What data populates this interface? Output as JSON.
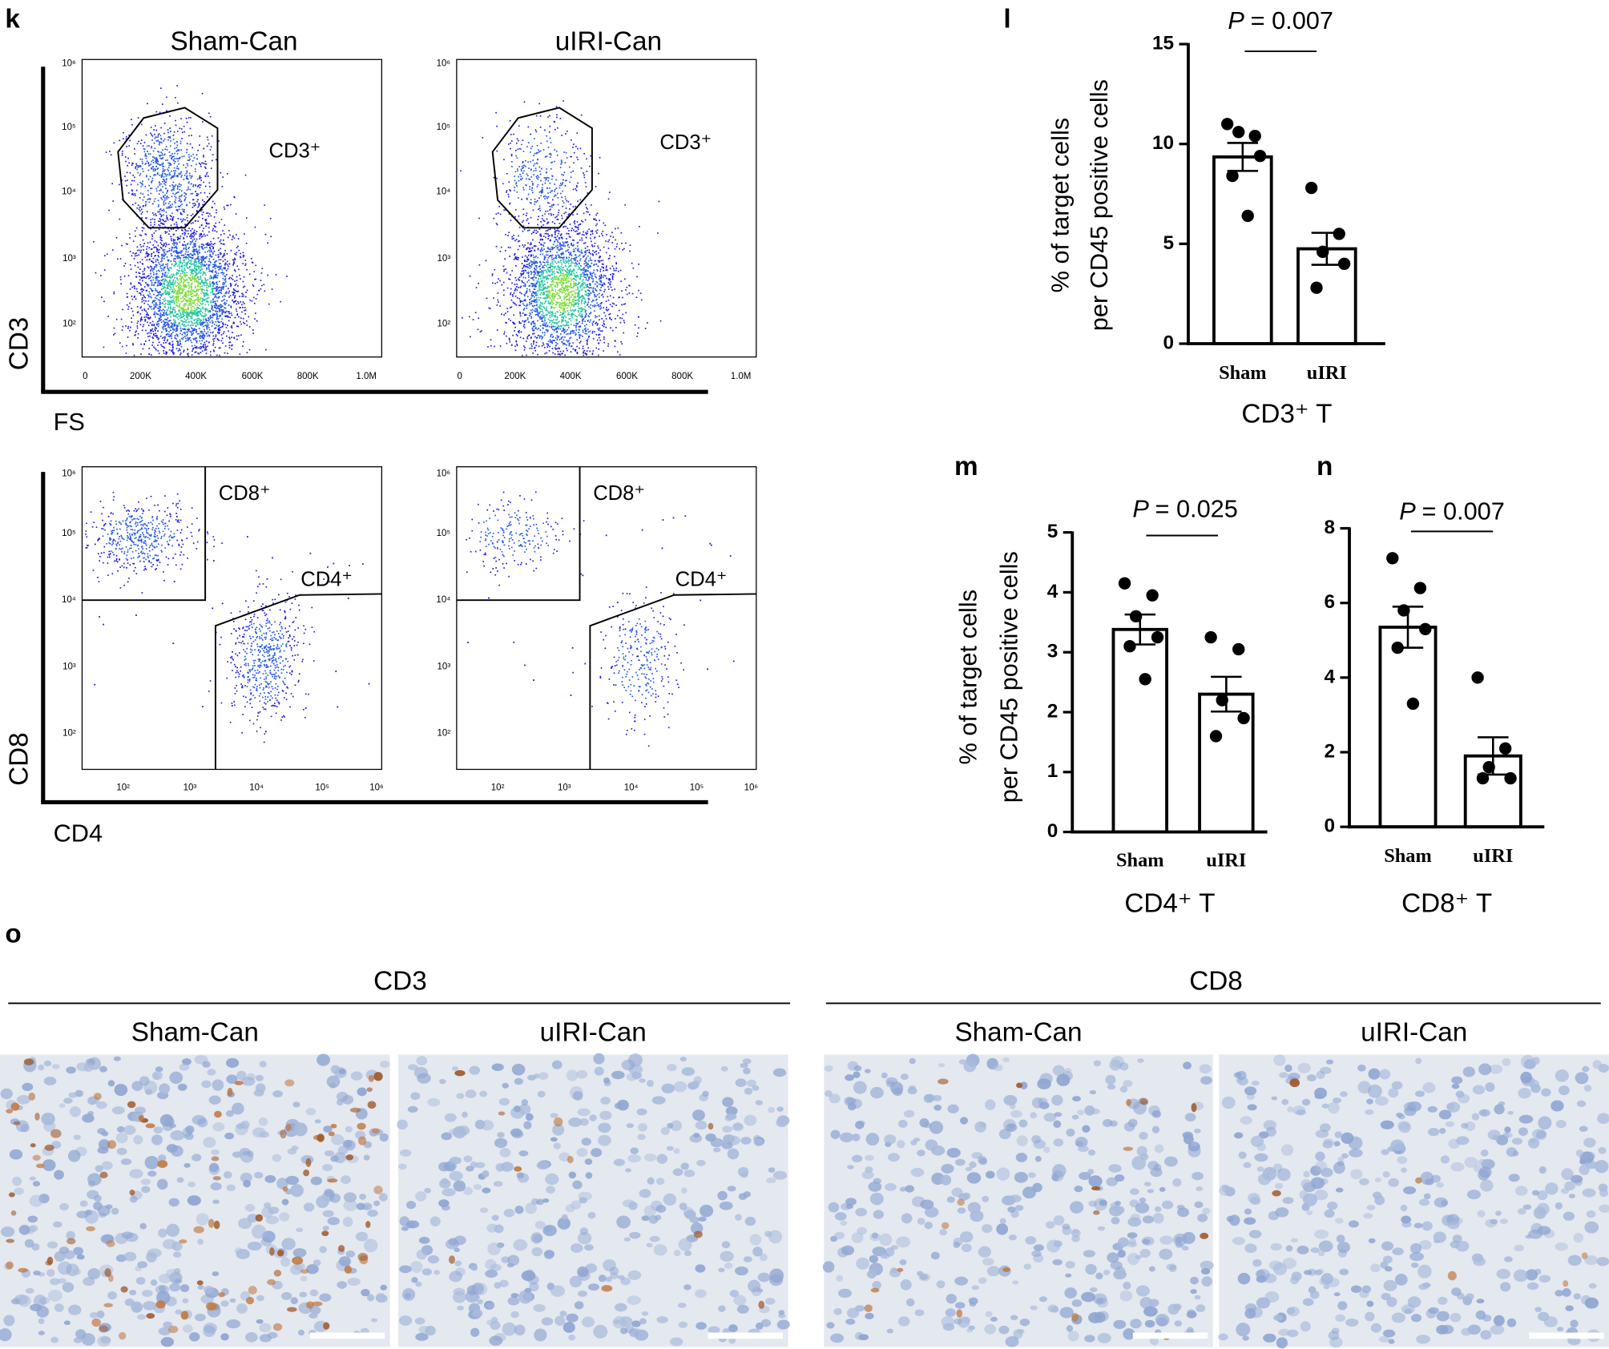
{
  "flow": {
    "panel_label": "k",
    "columns": [
      "Sham-Can",
      "uIRI-Can"
    ],
    "cd3_plot": {
      "y_label": "CD3",
      "x_label": "FS",
      "x_ticks": [
        "0",
        "200K",
        "400K",
        "600K",
        "800K",
        "1.0M"
      ],
      "y_ticks": [
        "10²",
        "10³",
        "10⁴",
        "10⁵",
        "10⁶"
      ],
      "gates": [
        "CD3⁺"
      ]
    },
    "cd4_cd8_plot": {
      "y_label": "CD8",
      "x_label": "CD4",
      "x_ticks": [
        "10²",
        "10³",
        "10⁴",
        "10⁵",
        "10⁶"
      ],
      "y_ticks": [
        "10²",
        "10³",
        "10⁴",
        "10⁵",
        "10⁶"
      ],
      "gates": [
        "CD8⁺",
        "CD4⁺"
      ]
    }
  },
  "chart_data": [
    {
      "type": "bar",
      "panel_label": "l",
      "p_value": {
        "symbol": "P",
        "text": "= 0.007"
      },
      "ylabel": [
        "% of target cells",
        "per  CD45 positive cells"
      ],
      "xlabel": "CD3⁺ T",
      "categories": [
        "Sham",
        "uIRI"
      ],
      "values": [
        9.35,
        4.75
      ],
      "errors": [
        0.7,
        0.8
      ],
      "points": [
        [
          11.0,
          10.4,
          10.6,
          9.4,
          8.4,
          6.4
        ],
        [
          7.8,
          5.5,
          4.6,
          4.0,
          2.8
        ]
      ],
      "color": "#ffffff",
      "ylim": [
        0,
        15
      ],
      "yticks": [
        0,
        5,
        10,
        15
      ]
    },
    {
      "type": "bar",
      "panel_label": "m",
      "p_value": {
        "symbol": "P",
        "text": "= 0.025"
      },
      "ylabel": [
        "% of target cells",
        "per  CD45 positive cells"
      ],
      "xlabel": "CD4⁺ T",
      "categories": [
        "Sham",
        "uIRI"
      ],
      "values": [
        3.38,
        2.3
      ],
      "errors": [
        0.25,
        0.29
      ],
      "points": [
        [
          4.15,
          3.95,
          3.6,
          3.25,
          3.1,
          2.55
        ],
        [
          3.25,
          3.05,
          2.2,
          1.9,
          1.6
        ]
      ],
      "color": "#ffffff",
      "ylim": [
        0,
        5
      ],
      "yticks": [
        0,
        1,
        2,
        3,
        4,
        5
      ]
    },
    {
      "type": "bar",
      "panel_label": "n",
      "p_value": {
        "symbol": "P",
        "text": "= 0.007"
      },
      "xlabel": "CD8⁺ T",
      "categories": [
        "Sham",
        "uIRI"
      ],
      "values": [
        5.35,
        1.9
      ],
      "errors": [
        0.55,
        0.5
      ],
      "points": [
        [
          7.2,
          6.4,
          5.8,
          5.3,
          4.8,
          3.3
        ],
        [
          4.0,
          2.1,
          1.6,
          1.3,
          1.3
        ]
      ],
      "color": "#ffffff",
      "ylim": [
        0,
        8
      ],
      "yticks": [
        0,
        2,
        4,
        6,
        8
      ]
    }
  ],
  "ihc": {
    "panel_label": "o",
    "groups": [
      {
        "title": "CD3",
        "columns": [
          "Sham-Can",
          "uIRI-Can"
        ]
      },
      {
        "title": "CD8",
        "columns": [
          "Sham-Can",
          "uIRI-Can"
        ]
      }
    ]
  }
}
